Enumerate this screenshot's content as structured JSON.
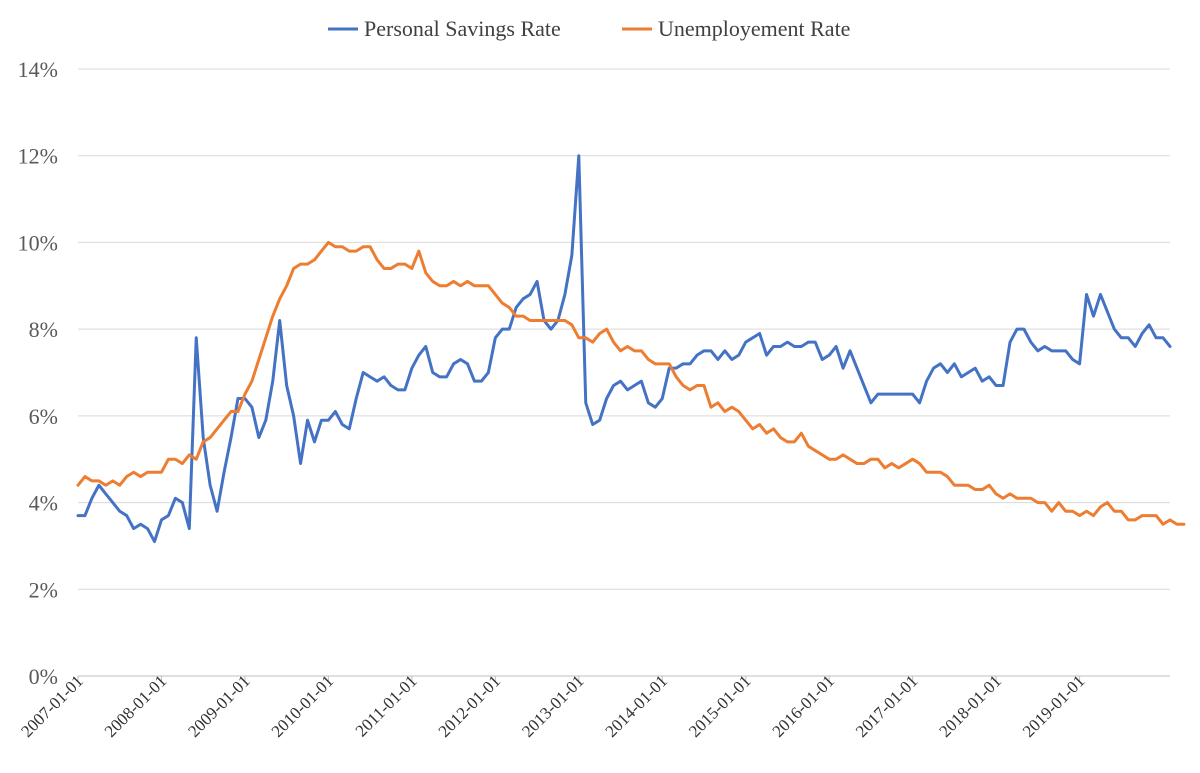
{
  "chart_data": {
    "type": "line",
    "title": "",
    "xlabel": "",
    "ylabel": "",
    "ylim": [
      0,
      14
    ],
    "y_ticks": [
      "0%",
      "2%",
      "4%",
      "6%",
      "8%",
      "10%",
      "12%",
      "14%"
    ],
    "x_tick_labels": [
      "2007-01-01",
      "2008-01-01",
      "2009-01-01",
      "2010-01-01",
      "2011-01-01",
      "2012-01-01",
      "2013-01-01",
      "2014-01-01",
      "2015-01-01",
      "2016-01-01",
      "2017-01-01",
      "2018-01-01",
      "2019-01-01"
    ],
    "x_start": "2007-01-01",
    "x_end": "2019-12-01",
    "legend_position": "top-center",
    "grid": true,
    "series": [
      {
        "name": "Personal Savings Rate",
        "color": "#4472c4",
        "values": [
          3.7,
          3.7,
          4.1,
          4.4,
          4.2,
          4.0,
          3.8,
          3.7,
          3.4,
          3.5,
          3.4,
          3.1,
          3.6,
          3.7,
          4.1,
          4.0,
          3.4,
          7.8,
          5.5,
          4.4,
          3.8,
          4.7,
          5.5,
          6.4,
          6.4,
          6.2,
          5.5,
          5.9,
          6.8,
          8.2,
          6.7,
          6.0,
          4.9,
          5.9,
          5.4,
          5.9,
          5.9,
          6.1,
          5.8,
          5.7,
          6.4,
          7.0,
          6.9,
          6.8,
          6.9,
          6.7,
          6.6,
          6.6,
          7.1,
          7.4,
          7.6,
          7.0,
          6.9,
          6.9,
          7.2,
          7.3,
          7.2,
          6.8,
          6.8,
          7.0,
          7.8,
          8.0,
          8.0,
          8.5,
          8.7,
          8.8,
          9.1,
          8.2,
          8.0,
          8.2,
          8.8,
          9.7,
          12.0,
          6.3,
          5.8,
          5.9,
          6.4,
          6.7,
          6.8,
          6.6,
          6.7,
          6.8,
          6.3,
          6.2,
          6.4,
          7.1,
          7.1,
          7.2,
          7.2,
          7.4,
          7.5,
          7.5,
          7.3,
          7.5,
          7.3,
          7.4,
          7.7,
          7.8,
          7.9,
          7.4,
          7.6,
          7.6,
          7.7,
          7.6,
          7.6,
          7.7,
          7.7,
          7.3,
          7.4,
          7.6,
          7.1,
          7.5,
          7.1,
          6.7,
          6.3,
          6.5,
          6.5,
          6.5,
          6.5,
          6.5,
          6.5,
          6.3,
          6.8,
          7.1,
          7.2,
          7.0,
          7.2,
          6.9,
          7.0,
          7.1,
          6.8,
          6.9,
          6.7,
          6.7,
          7.7,
          8.0,
          8.0,
          7.7,
          7.5,
          7.6,
          7.5,
          7.5,
          7.5,
          7.3,
          7.2,
          8.8,
          8.3,
          8.8,
          8.4,
          8.0,
          7.8,
          7.8,
          7.6,
          7.9,
          8.1,
          7.8,
          7.8,
          7.6
        ]
      },
      {
        "name": "Unemployement Rate",
        "color": "#ed7d31",
        "values": [
          4.4,
          4.6,
          4.5,
          4.5,
          4.4,
          4.5,
          4.4,
          4.6,
          4.7,
          4.6,
          4.7,
          4.7,
          4.7,
          5.0,
          5.0,
          4.9,
          5.1,
          5.0,
          5.4,
          5.5,
          5.7,
          5.9,
          6.1,
          6.1,
          6.5,
          6.8,
          7.3,
          7.8,
          8.3,
          8.7,
          9.0,
          9.4,
          9.5,
          9.5,
          9.6,
          9.8,
          10.0,
          9.9,
          9.9,
          9.8,
          9.8,
          9.9,
          9.9,
          9.6,
          9.4,
          9.4,
          9.5,
          9.5,
          9.4,
          9.8,
          9.3,
          9.1,
          9.0,
          9.0,
          9.1,
          9.0,
          9.1,
          9.0,
          9.0,
          9.0,
          8.8,
          8.6,
          8.5,
          8.3,
          8.3,
          8.2,
          8.2,
          8.2,
          8.2,
          8.2,
          8.2,
          8.1,
          7.8,
          7.8,
          7.7,
          7.9,
          8.0,
          7.7,
          7.5,
          7.6,
          7.5,
          7.5,
          7.3,
          7.2,
          7.2,
          7.2,
          6.9,
          6.7,
          6.6,
          6.7,
          6.7,
          6.2,
          6.3,
          6.1,
          6.2,
          6.1,
          5.9,
          5.7,
          5.8,
          5.6,
          5.7,
          5.5,
          5.4,
          5.4,
          5.6,
          5.3,
          5.2,
          5.1,
          5.0,
          5.0,
          5.1,
          5.0,
          4.9,
          4.9,
          5.0,
          5.0,
          4.8,
          4.9,
          4.8,
          4.9,
          5.0,
          4.9,
          4.7,
          4.7,
          4.7,
          4.6,
          4.4,
          4.4,
          4.4,
          4.3,
          4.3,
          4.4,
          4.2,
          4.1,
          4.2,
          4.1,
          4.1,
          4.1,
          4.0,
          4.0,
          3.8,
          4.0,
          3.8,
          3.8,
          3.7,
          3.8,
          3.7,
          3.9,
          4.0,
          3.8,
          3.8,
          3.6,
          3.6,
          3.7,
          3.7,
          3.7,
          3.5,
          3.6,
          3.5,
          3.5
        ]
      }
    ]
  }
}
